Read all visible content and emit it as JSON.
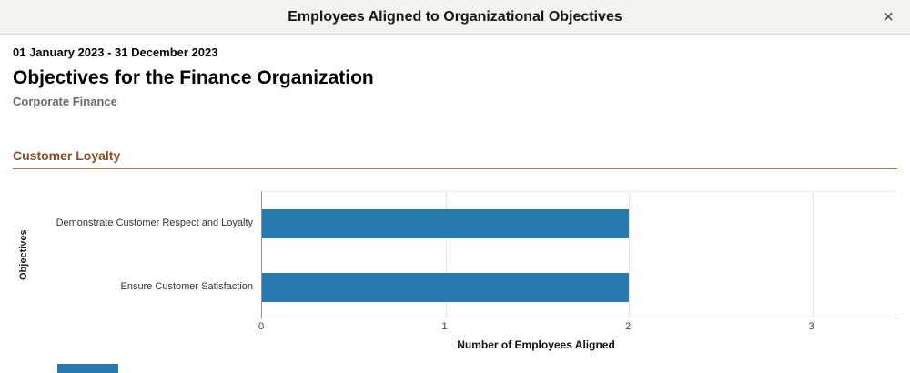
{
  "header": {
    "title": "Employees Aligned to Organizational Objectives",
    "close_label": "×"
  },
  "content": {
    "date_range": "01 January 2023 - 31 December 2023",
    "title": "Objectives for the Finance Organization",
    "subtitle": "Corporate Finance"
  },
  "section": {
    "title": "Customer Loyalty"
  },
  "colors": {
    "bar": "#2779b0",
    "section_title": "#8f4a21",
    "section_rule": "#ab7d4e",
    "header_bg": "#f4f3f0"
  },
  "chart_data": {
    "type": "bar",
    "orientation": "horizontal",
    "title": "Customer Loyalty",
    "categories": [
      "Demonstrate Customer Respect and Loyalty",
      "Ensure Customer Satisfaction"
    ],
    "values": [
      2,
      2
    ],
    "xlabel": "Number of Employees Aligned",
    "ylabel": "Objectives",
    "xlim": [
      0,
      3
    ],
    "xticks": [
      0,
      1,
      2,
      3
    ],
    "grid": true,
    "legend": false
  }
}
